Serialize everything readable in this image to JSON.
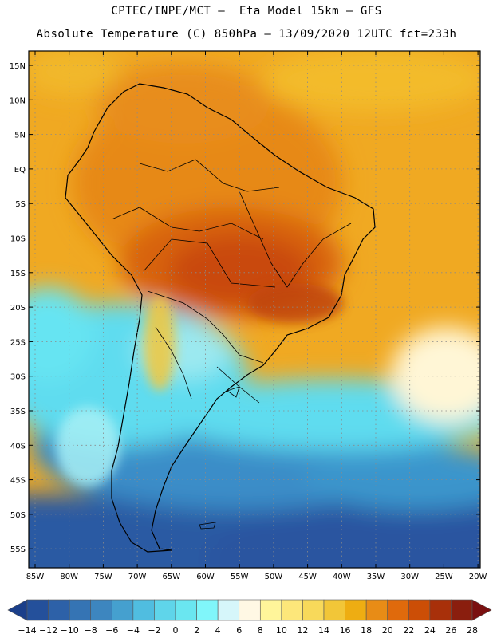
{
  "header": {
    "line1": "CPTEC/INPE/MCT –  Eta Model 15km – GFS",
    "line2": "Absolute Temperature (C) 850hPa – 13/09/2020 12UTC fct=233h"
  },
  "map": {
    "lat_labels": [
      "15N",
      "10N",
      "5N",
      "EQ",
      "5S",
      "10S",
      "15S",
      "20S",
      "25S",
      "30S",
      "35S",
      "40S",
      "45S",
      "50S",
      "55S"
    ],
    "lon_labels": [
      "85W",
      "80W",
      "75W",
      "70W",
      "65W",
      "60W",
      "55W",
      "50W",
      "45W",
      "40W",
      "35W",
      "30W",
      "25W",
      "20W"
    ]
  },
  "colorbar": {
    "labels": [
      "-14",
      "-12",
      "-10",
      "-8",
      "-6",
      "-4",
      "-2",
      "0",
      "2",
      "4",
      "6",
      "8",
      "10",
      "12",
      "14",
      "16",
      "18",
      "20",
      "22",
      "24",
      "26",
      "28"
    ],
    "colors": [
      "#1b3f8a",
      "#24509b",
      "#2d61a8",
      "#3574b4",
      "#3d86bf",
      "#45a0cf",
      "#50bde0",
      "#5fd5ea",
      "#6ae6f0",
      "#80f6fa",
      "#d6f6fa",
      "#fff8e4",
      "#fff59a",
      "#fde77a",
      "#f8d95a",
      "#f2c638",
      "#eead12",
      "#e88c16",
      "#e06a0c",
      "#cc4e06",
      "#a8300a",
      "#8a1e0e",
      "#7a1010"
    ]
  },
  "palette": {
    "ocean_cold": "#2c5fa5",
    "ocean_cyan": "#5fdcef",
    "warm_orange": "#f0a520",
    "hot_brown": "#c84a0a"
  }
}
